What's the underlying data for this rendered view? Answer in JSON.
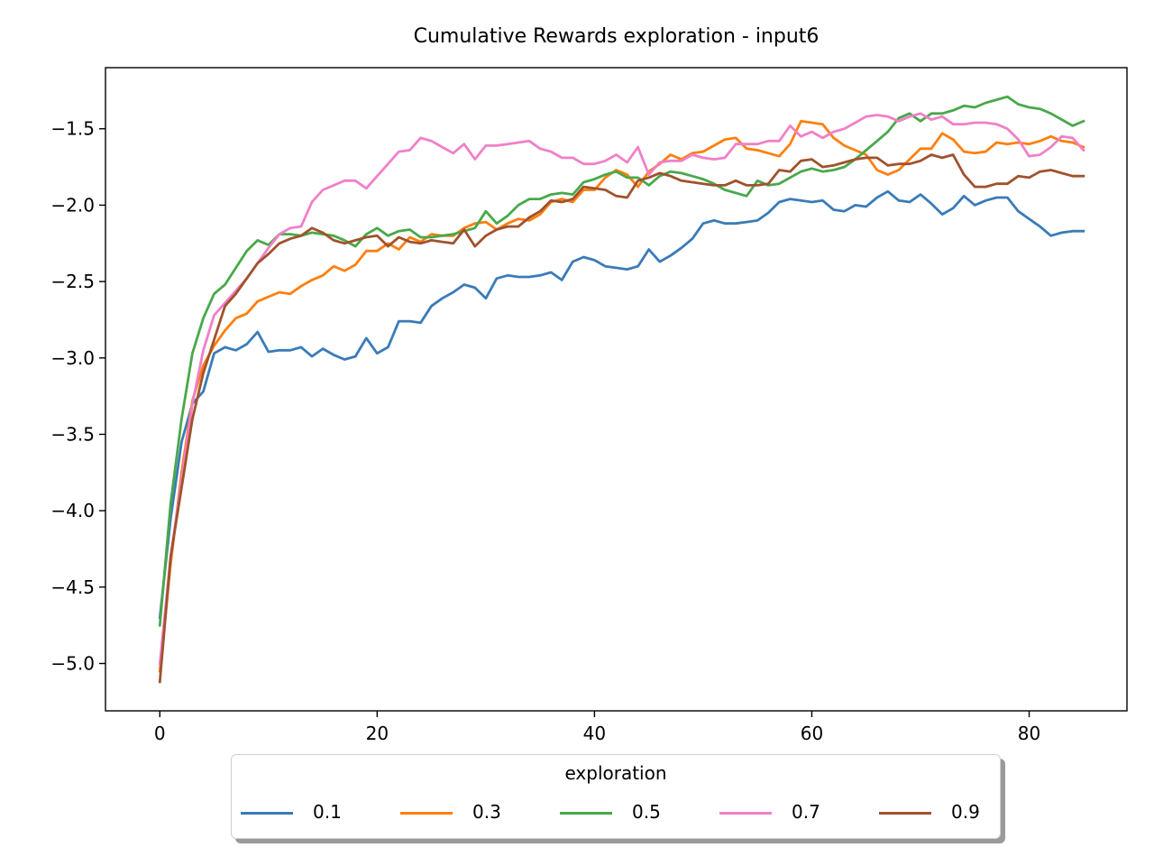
{
  "chart_data": {
    "type": "line",
    "title": "Cumulative Rewards exploration - input6",
    "xlabel": "",
    "ylabel": "",
    "xlim": [
      -5,
      89
    ],
    "ylim": [
      -5.31,
      -1.1
    ],
    "xticks": [
      0,
      20,
      40,
      60,
      80
    ],
    "xtick_labels": [
      "0",
      "20",
      "40",
      "60",
      "80"
    ],
    "yticks": [
      -5.0,
      -4.5,
      -4.0,
      -3.5,
      -3.0,
      -2.5,
      -2.0,
      -1.5
    ],
    "ytick_labels": [
      "−5.0",
      "−4.5",
      "−4.0",
      "−3.5",
      "−3.0",
      "−2.5",
      "−2.0",
      "−1.5"
    ],
    "grid": false,
    "legend": {
      "title": "exploration",
      "placement": "below-center",
      "columns": 5
    },
    "series": [
      {
        "name": "0.1",
        "color": "#3a7bb8",
        "values": [
          -4.7,
          -4.05,
          -3.55,
          -3.3,
          -3.22,
          -2.97,
          -2.93,
          -2.95,
          -2.91,
          -2.83,
          -2.96,
          -2.95,
          -2.95,
          -2.93,
          -2.99,
          -2.94,
          -2.98,
          -3.01,
          -2.99,
          -2.87,
          -2.97,
          -2.93,
          -2.76,
          -2.76,
          -2.77,
          -2.66,
          -2.61,
          -2.57,
          -2.52,
          -2.54,
          -2.61,
          -2.48,
          -2.46,
          -2.47,
          -2.47,
          -2.46,
          -2.44,
          -2.49,
          -2.37,
          -2.34,
          -2.36,
          -2.4,
          -2.41,
          -2.42,
          -2.4,
          -2.29,
          -2.37,
          -2.33,
          -2.28,
          -2.22,
          -2.12,
          -2.1,
          -2.12,
          -2.12,
          -2.11,
          -2.1,
          -2.05,
          -1.98,
          -1.96,
          -1.97,
          -1.98,
          -1.97,
          -2.03,
          -2.04,
          -2.0,
          -2.01,
          -1.95,
          -1.91,
          -1.97,
          -1.98,
          -1.93,
          -1.99,
          -2.06,
          -2.02,
          -1.94,
          -2.0,
          -1.97,
          -1.95,
          -1.95,
          -2.04,
          -2.09,
          -2.14,
          -2.2,
          -2.18,
          -2.17,
          -2.17
        ]
      },
      {
        "name": "0.3",
        "color": "#ff7f0e",
        "values": [
          -5.05,
          -4.35,
          -3.75,
          -3.28,
          -3.05,
          -2.92,
          -2.82,
          -2.74,
          -2.71,
          -2.63,
          -2.6,
          -2.57,
          -2.58,
          -2.53,
          -2.49,
          -2.46,
          -2.4,
          -2.43,
          -2.39,
          -2.3,
          -2.3,
          -2.25,
          -2.29,
          -2.21,
          -2.24,
          -2.19,
          -2.2,
          -2.2,
          -2.15,
          -2.12,
          -2.11,
          -2.16,
          -2.12,
          -2.09,
          -2.1,
          -2.06,
          -1.98,
          -1.96,
          -1.98,
          -1.9,
          -1.9,
          -1.82,
          -1.77,
          -1.8,
          -1.88,
          -1.78,
          -1.73,
          -1.67,
          -1.7,
          -1.66,
          -1.65,
          -1.61,
          -1.57,
          -1.56,
          -1.63,
          -1.64,
          -1.66,
          -1.68,
          -1.6,
          -1.45,
          -1.46,
          -1.47,
          -1.56,
          -1.61,
          -1.64,
          -1.67,
          -1.77,
          -1.8,
          -1.77,
          -1.7,
          -1.63,
          -1.63,
          -1.53,
          -1.57,
          -1.65,
          -1.66,
          -1.65,
          -1.59,
          -1.6,
          -1.59,
          -1.6,
          -1.58,
          -1.55,
          -1.58,
          -1.59,
          -1.62
        ]
      },
      {
        "name": "0.5",
        "color": "#49a84a",
        "values": [
          -4.75,
          -3.95,
          -3.4,
          -2.97,
          -2.74,
          -2.58,
          -2.52,
          -2.41,
          -2.3,
          -2.23,
          -2.26,
          -2.19,
          -2.19,
          -2.2,
          -2.18,
          -2.19,
          -2.2,
          -2.23,
          -2.27,
          -2.19,
          -2.15,
          -2.2,
          -2.17,
          -2.16,
          -2.21,
          -2.21,
          -2.2,
          -2.19,
          -2.17,
          -2.15,
          -2.04,
          -2.12,
          -2.07,
          -2.0,
          -1.96,
          -1.96,
          -1.93,
          -1.92,
          -1.93,
          -1.85,
          -1.83,
          -1.8,
          -1.78,
          -1.82,
          -1.82,
          -1.87,
          -1.81,
          -1.78,
          -1.79,
          -1.81,
          -1.83,
          -1.86,
          -1.9,
          -1.92,
          -1.94,
          -1.84,
          -1.87,
          -1.86,
          -1.82,
          -1.78,
          -1.76,
          -1.78,
          -1.77,
          -1.75,
          -1.7,
          -1.64,
          -1.58,
          -1.52,
          -1.43,
          -1.4,
          -1.45,
          -1.4,
          -1.4,
          -1.38,
          -1.35,
          -1.36,
          -1.33,
          -1.31,
          -1.29,
          -1.34,
          -1.36,
          -1.37,
          -1.4,
          -1.44,
          -1.48,
          -1.45
        ]
      },
      {
        "name": "0.7",
        "color": "#f080c8",
        "values": [
          -5.0,
          -4.3,
          -3.8,
          -3.3,
          -2.95,
          -2.72,
          -2.64,
          -2.56,
          -2.48,
          -2.38,
          -2.28,
          -2.19,
          -2.15,
          -2.14,
          -1.98,
          -1.9,
          -1.87,
          -1.84,
          -1.84,
          -1.89,
          -1.81,
          -1.73,
          -1.65,
          -1.64,
          -1.56,
          -1.58,
          -1.62,
          -1.66,
          -1.6,
          -1.7,
          -1.61,
          -1.61,
          -1.6,
          -1.59,
          -1.58,
          -1.63,
          -1.65,
          -1.69,
          -1.69,
          -1.73,
          -1.73,
          -1.71,
          -1.67,
          -1.72,
          -1.62,
          -1.8,
          -1.72,
          -1.71,
          -1.71,
          -1.67,
          -1.69,
          -1.7,
          -1.69,
          -1.6,
          -1.6,
          -1.6,
          -1.58,
          -1.58,
          -1.48,
          -1.55,
          -1.52,
          -1.56,
          -1.52,
          -1.5,
          -1.46,
          -1.42,
          -1.41,
          -1.42,
          -1.45,
          -1.42,
          -1.4,
          -1.44,
          -1.42,
          -1.47,
          -1.47,
          -1.46,
          -1.46,
          -1.47,
          -1.5,
          -1.57,
          -1.68,
          -1.67,
          -1.62,
          -1.55,
          -1.56,
          -1.64
        ]
      },
      {
        "name": "0.9",
        "color": "#a0522d",
        "values": [
          -5.12,
          -4.3,
          -3.85,
          -3.4,
          -3.1,
          -2.88,
          -2.66,
          -2.58,
          -2.48,
          -2.38,
          -2.32,
          -2.25,
          -2.22,
          -2.2,
          -2.15,
          -2.18,
          -2.23,
          -2.25,
          -2.23,
          -2.21,
          -2.2,
          -2.27,
          -2.21,
          -2.24,
          -2.25,
          -2.23,
          -2.24,
          -2.25,
          -2.16,
          -2.27,
          -2.2,
          -2.16,
          -2.14,
          -2.14,
          -2.08,
          -2.04,
          -1.97,
          -1.98,
          -1.96,
          -1.88,
          -1.89,
          -1.9,
          -1.94,
          -1.95,
          -1.84,
          -1.82,
          -1.79,
          -1.81,
          -1.84,
          -1.85,
          -1.86,
          -1.87,
          -1.87,
          -1.84,
          -1.87,
          -1.87,
          -1.86,
          -1.77,
          -1.78,
          -1.71,
          -1.7,
          -1.75,
          -1.74,
          -1.72,
          -1.7,
          -1.69,
          -1.69,
          -1.74,
          -1.73,
          -1.73,
          -1.71,
          -1.67,
          -1.69,
          -1.67,
          -1.8,
          -1.88,
          -1.88,
          -1.86,
          -1.86,
          -1.81,
          -1.82,
          -1.78,
          -1.77,
          -1.79,
          -1.81,
          -1.81
        ]
      }
    ]
  }
}
